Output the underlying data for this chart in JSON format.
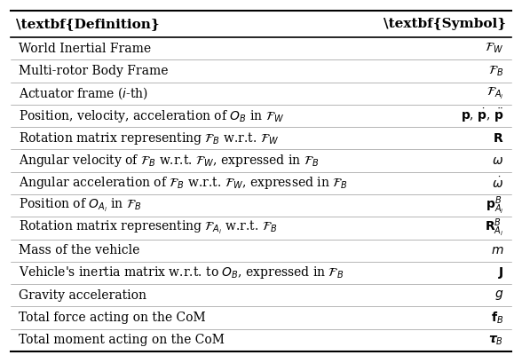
{
  "title_def": "Definition",
  "title_sym": "Symbol",
  "rows": [
    {
      "definition": "World Inertial Frame",
      "symbol": "$\\mathcal{F}_{W}$"
    },
    {
      "definition": "Multi-rotor Body Frame",
      "symbol": "$\\mathcal{F}_{B}$"
    },
    {
      "definition": "Actuator frame ($i$-th)",
      "symbol": "$\\mathcal{F}_{A_i}$"
    },
    {
      "definition": "Position, velocity, acceleration of $O_B$ in $\\mathcal{F}_{W}$",
      "symbol": "$\\mathbf{p}$, $\\dot{\\mathbf{p}}$, $\\ddot{\\mathbf{p}}$"
    },
    {
      "definition": "Rotation matrix representing $\\mathcal{F}_{B}$ w.r.t. $\\mathcal{F}_{W}$",
      "symbol": "$\\mathbf{R}$"
    },
    {
      "definition": "Angular velocity of $\\mathcal{F}_{B}$ w.r.t. $\\mathcal{F}_{W}$, expressed in $\\mathcal{F}_{B}$",
      "symbol": "$\\omega$"
    },
    {
      "definition": "Angular acceleration of $\\mathcal{F}_{B}$ w.r.t. $\\mathcal{F}_{W}$, expressed in $\\mathcal{F}_{B}$",
      "symbol": "$\\dot{\\omega}$"
    },
    {
      "definition": "Position of $O_{A_i}$ in $\\mathcal{F}_{B}$",
      "symbol": "$\\mathbf{p}^{B}_{A_i}$"
    },
    {
      "definition": "Rotation matrix representing $\\mathcal{F}_{A_i}$ w.r.t. $\\mathcal{F}_{B}$",
      "symbol": "$\\mathbf{R}^{B}_{A_i}$"
    },
    {
      "definition": "Mass of the vehicle",
      "symbol": "$m$"
    },
    {
      "definition": "Vehicle's inertia matrix w.r.t. to $O_B$, expressed in $\\mathcal{F}_{B}$",
      "symbol": "$\\mathbf{J}$"
    },
    {
      "definition": "Gravity acceleration",
      "symbol": "$g$"
    },
    {
      "definition": "Total force acting on the CoM",
      "symbol": "$\\mathbf{f}_{B}$"
    },
    {
      "definition": "Total moment acting on the CoM",
      "symbol": "$\\boldsymbol{\\tau}_{B}$"
    }
  ],
  "bg_color": "#ffffff",
  "header_color": "#000000",
  "text_color": "#000000",
  "line_color": "#000000",
  "fontsize": 10,
  "header_fontsize": 11
}
